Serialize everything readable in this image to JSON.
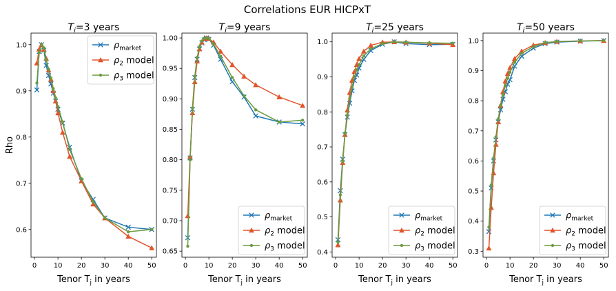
{
  "title": "Correlations EUR HICPxT",
  "colors": {
    "market": "#1f77b4",
    "rho2": "#e1552b",
    "rho3": "#6c9a3e"
  },
  "legend_labels": {
    "market_sym": "ρ",
    "market_sub": "market",
    "rho2_sym": "ρ",
    "rho2_sub": "2",
    "rho3_sym": "ρ",
    "rho3_sub": "3",
    "model_word": " model"
  },
  "chart_data": [
    {
      "type": "line",
      "title_prefix": "T",
      "title_sub": "i",
      "title_suffix": "=3 years",
      "xlabel_prefix": "Tenor T",
      "xlabel_sub": "j",
      "xlabel_suffix": " in years",
      "ylabel": "Rho",
      "xlim": [
        -1.5,
        52
      ],
      "ylim": [
        0.54,
        1.025
      ],
      "xticks": [
        0,
        10,
        20,
        30,
        40,
        50
      ],
      "yticks": [
        0.6,
        0.7,
        0.8,
        0.9,
        1.0
      ],
      "ytick_labels": [
        "0.6",
        "0.7",
        "0.8",
        "0.9",
        "1.0"
      ],
      "legend_loc": "upper right",
      "x": [
        1,
        2,
        3,
        4,
        5,
        6,
        7,
        8,
        9,
        10,
        12,
        15,
        20,
        25,
        30,
        40,
        50
      ],
      "series": [
        {
          "name": "market",
          "marker": "x",
          "values": [
            0.902,
            0.985,
            1.0,
            0.988,
            0.955,
            0.933,
            0.915,
            0.895,
            0.878,
            0.86,
            0.83,
            0.778,
            0.705,
            0.665,
            0.625,
            0.605,
            0.6
          ]
        },
        {
          "name": "rho2",
          "marker": "triangle",
          "values": [
            0.96,
            0.99,
            1.0,
            0.99,
            0.97,
            0.945,
            0.925,
            0.9,
            0.878,
            0.852,
            0.81,
            0.758,
            0.705,
            0.655,
            0.625,
            0.585,
            0.56
          ]
        },
        {
          "name": "rho3",
          "marker": "dot",
          "values": [
            0.917,
            0.983,
            1.0,
            0.993,
            0.968,
            0.947,
            0.928,
            0.905,
            0.885,
            0.866,
            0.833,
            0.773,
            0.71,
            0.66,
            0.625,
            0.595,
            0.6
          ]
        }
      ]
    },
    {
      "type": "line",
      "title_prefix": "T",
      "title_sub": "i",
      "title_suffix": "=9 years",
      "xlabel_prefix": "Tenor T",
      "xlabel_sub": "j",
      "xlabel_suffix": " in years",
      "ylabel": "",
      "xlim": [
        -1.5,
        52
      ],
      "ylim": [
        0.64,
        1.008
      ],
      "xticks": [
        0,
        10,
        20,
        30,
        40,
        50
      ],
      "yticks": [
        0.65,
        0.7,
        0.75,
        0.8,
        0.85,
        0.9,
        0.95,
        1.0
      ],
      "ytick_labels": [
        "0.65",
        "0.70",
        "0.75",
        "0.80",
        "0.85",
        "0.90",
        "0.95",
        "1.00"
      ],
      "legend_loc": "lower right",
      "x": [
        1,
        2,
        3,
        4,
        5,
        6,
        7,
        8,
        9,
        10,
        12,
        15,
        20,
        25,
        30,
        40,
        50
      ],
      "series": [
        {
          "name": "market",
          "marker": "x",
          "values": [
            0.672,
            0.803,
            0.883,
            0.935,
            0.965,
            0.982,
            0.992,
            0.997,
            1.0,
            0.998,
            0.988,
            0.965,
            0.928,
            0.903,
            0.872,
            0.862,
            0.859
          ]
        },
        {
          "name": "rho2",
          "marker": "triangle",
          "values": [
            0.708,
            0.805,
            0.877,
            0.928,
            0.962,
            0.982,
            0.993,
            0.999,
            1.0,
            0.999,
            0.993,
            0.978,
            0.956,
            0.937,
            0.923,
            0.903,
            0.889
          ]
        },
        {
          "name": "rho3",
          "marker": "dot",
          "values": [
            0.658,
            0.8,
            0.885,
            0.937,
            0.968,
            0.986,
            0.995,
            0.999,
            1.0,
            0.999,
            0.99,
            0.97,
            0.935,
            0.905,
            0.882,
            0.862,
            0.865
          ]
        }
      ]
    },
    {
      "type": "line",
      "title_prefix": "T",
      "title_sub": "i",
      "title_suffix": "=25 years",
      "xlabel_prefix": "Tenor T",
      "xlabel_sub": "j",
      "xlabel_suffix": " in years",
      "ylabel": "",
      "xlim": [
        -1.5,
        52
      ],
      "ylim": [
        0.385,
        1.025
      ],
      "xticks": [
        0,
        10,
        20,
        30,
        40,
        50
      ],
      "yticks": [
        0.4,
        0.5,
        0.6,
        0.7,
        0.8,
        0.9,
        1.0
      ],
      "ytick_labels": [
        "0.4",
        "0.5",
        "0.6",
        "0.7",
        "0.8",
        "0.9",
        "1.0"
      ],
      "legend_loc": "lower right",
      "x": [
        1,
        2,
        3,
        4,
        5,
        6,
        7,
        8,
        9,
        10,
        12,
        15,
        20,
        25,
        30,
        40,
        50
      ],
      "series": [
        {
          "name": "market",
          "marker": "x",
          "values": [
            0.435,
            0.575,
            0.665,
            0.735,
            0.785,
            0.825,
            0.86,
            0.89,
            0.905,
            0.925,
            0.95,
            0.975,
            0.993,
            1.0,
            0.995,
            0.992,
            0.993
          ]
        },
        {
          "name": "rho2",
          "marker": "triangle",
          "values": [
            0.42,
            0.548,
            0.655,
            0.735,
            0.805,
            0.855,
            0.89,
            0.915,
            0.935,
            0.952,
            0.973,
            0.99,
            0.999,
            1.0,
            0.999,
            0.996,
            0.992
          ]
        },
        {
          "name": "rho3",
          "marker": "dot",
          "values": [
            0.428,
            0.563,
            0.66,
            0.74,
            0.79,
            0.838,
            0.87,
            0.9,
            0.92,
            0.935,
            0.96,
            0.98,
            0.995,
            1.0,
            0.999,
            0.997,
            0.996
          ]
        }
      ]
    },
    {
      "type": "line",
      "title_prefix": "T",
      "title_sub": "i",
      "title_suffix": "=50 years",
      "xlabel_prefix": "Tenor T",
      "xlabel_sub": "j",
      "xlabel_suffix": " in years",
      "ylabel": "",
      "xlim": [
        -1.5,
        52
      ],
      "ylim": [
        0.28,
        1.025
      ],
      "xticks": [
        0,
        10,
        20,
        30,
        40,
        50
      ],
      "yticks": [
        0.3,
        0.4,
        0.5,
        0.6,
        0.7,
        0.8,
        0.9,
        1.0
      ],
      "ytick_labels": [
        "0.3",
        "0.4",
        "0.5",
        "0.6",
        "0.7",
        "0.8",
        "0.9",
        "1.0"
      ],
      "legend_loc": "lower right",
      "x": [
        1,
        2,
        3,
        4,
        5,
        6,
        7,
        8,
        9,
        10,
        12,
        15,
        20,
        25,
        30,
        40,
        50
      ],
      "series": [
        {
          "name": "market",
          "marker": "x",
          "values": [
            0.365,
            0.51,
            0.6,
            0.67,
            0.73,
            0.77,
            0.805,
            0.83,
            0.855,
            0.87,
            0.915,
            0.948,
            0.975,
            0.99,
            0.995,
            0.998,
            1.0
          ]
        },
        {
          "name": "rho2",
          "marker": "triangle",
          "values": [
            0.31,
            0.445,
            0.56,
            0.655,
            0.73,
            0.785,
            0.83,
            0.865,
            0.89,
            0.91,
            0.94,
            0.965,
            0.985,
            0.993,
            0.997,
            0.999,
            1.0
          ]
        },
        {
          "name": "rho3",
          "marker": "dot",
          "values": [
            0.38,
            0.52,
            0.61,
            0.68,
            0.74,
            0.785,
            0.82,
            0.85,
            0.875,
            0.895,
            0.928,
            0.958,
            0.98,
            0.993,
            0.997,
            0.999,
            1.0
          ]
        }
      ]
    }
  ]
}
